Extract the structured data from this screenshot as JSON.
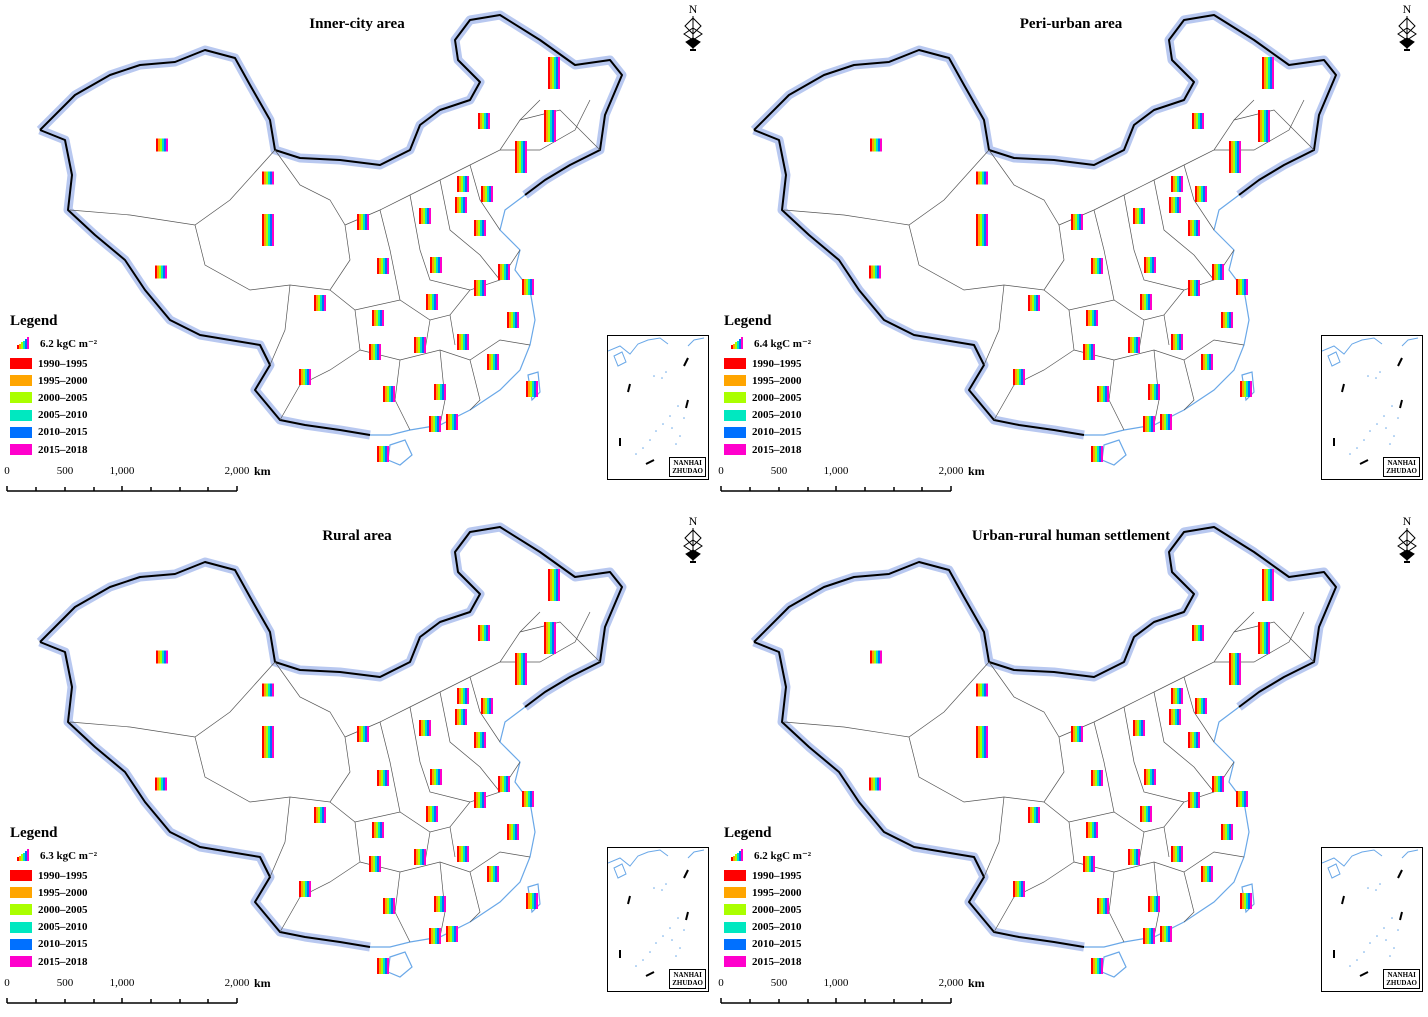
{
  "panels": [
    {
      "title": "Inner-city area",
      "unit_label": "6.2 kgC m⁻²"
    },
    {
      "title": "Peri-urban area",
      "unit_label": "6.4 kgC m⁻²"
    },
    {
      "title": "Rural area",
      "unit_label": "6.3 kgC m⁻²"
    },
    {
      "title": "Urban-rural human settlement",
      "unit_label": "6.2 kgC m⁻²"
    }
  ],
  "legend": {
    "title": "Legend",
    "periods": [
      {
        "label": "1990–1995",
        "color": "#ff0000"
      },
      {
        "label": "1995–2000",
        "color": "#ffa500"
      },
      {
        "label": "2000–2005",
        "color": "#aaff00"
      },
      {
        "label": "2005–2010",
        "color": "#00e8c0"
      },
      {
        "label": "2010–2015",
        "color": "#0070ff"
      },
      {
        "label": "2015–2018",
        "color": "#ff00cc"
      }
    ]
  },
  "scale_bar": {
    "ticks": [
      "0",
      "500",
      "1,000",
      "2,000"
    ],
    "unit": "km"
  },
  "north_arrow": {
    "label": "N",
    "icon": "north-arrow-icon"
  },
  "inset": {
    "line1": "NANHAI",
    "line2": "ZHUDAO"
  },
  "colors": {
    "coast": "#b8c8f0",
    "water": "#6aa8e8",
    "border": "#000000"
  }
}
